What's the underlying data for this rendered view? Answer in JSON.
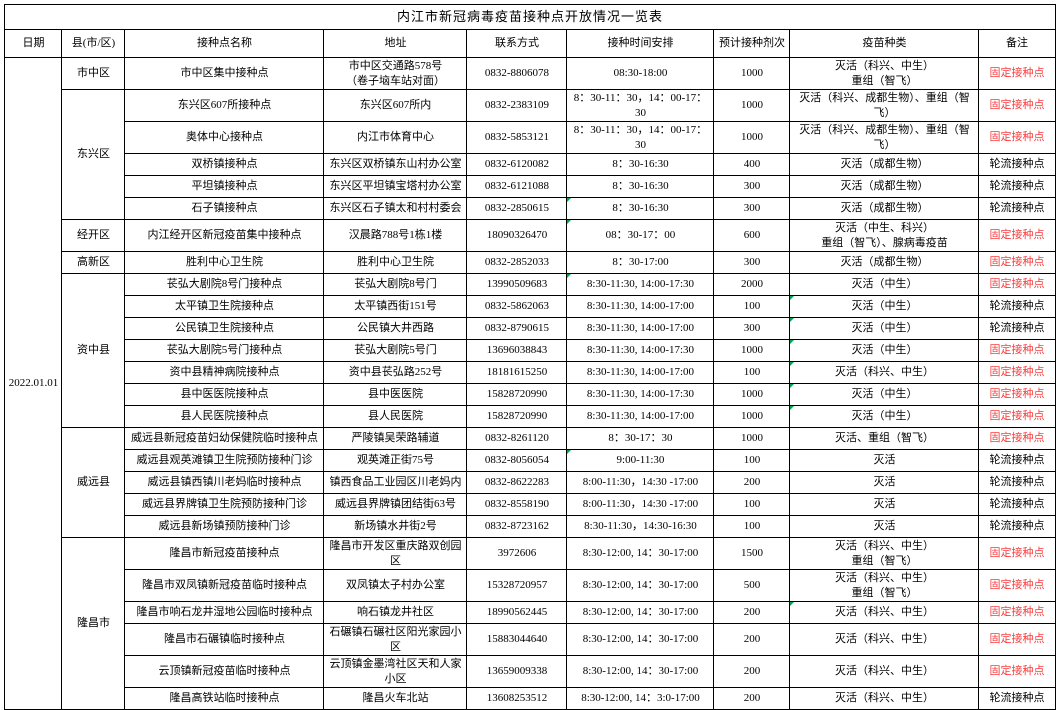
{
  "title": "内江市新冠病毒疫苗接种点开放情况一览表",
  "date": "2022.01.01",
  "columns": [
    "日期",
    "县(市/区)",
    "接种点名称",
    "地址",
    "联系方式",
    "接种时间安排",
    "预计接种剂次",
    "疫苗种类",
    "备注"
  ],
  "colors": {
    "fixed_remark_red": "#FA3C3C",
    "normal_text": "#000000",
    "border": "#000000",
    "cell_mark_green": "#00A650"
  },
  "districts": [
    {
      "name": "市中区",
      "rows": [
        {
          "site": "市中区集中接种点",
          "address": "市中区交通路578号\n（卷子垴车站对面）",
          "contact": "0832-8806078",
          "time": "08:30-18:00",
          "doses": "1000",
          "vaccine": "灭活（科兴、中生）\n重组（智飞）",
          "remark": "固定接种点",
          "fixed": true
        }
      ]
    },
    {
      "name": "东兴区",
      "rows": [
        {
          "site": "东兴区607所接种点",
          "address": "东兴区607所内",
          "contact": "0832-2383109",
          "time": "8：30-11：30，14：00-17：30",
          "doses": "1000",
          "vaccine": "灭活（科兴、成都生物）、重组（智飞）",
          "remark": "固定接种点",
          "fixed": true
        },
        {
          "site": "奥体中心接种点",
          "address": "内江市体育中心",
          "contact": "0832-5853121",
          "time": "8：30-11：30，14：00-17：30",
          "doses": "1000",
          "vaccine": "灭活（科兴、成都生物）、重组（智飞）",
          "remark": "固定接种点",
          "fixed": true
        },
        {
          "site": "双桥镇接种点",
          "address": "东兴区双桥镇东山村办公室",
          "contact": "0832-6120082",
          "time": "8：30-16:30",
          "doses": "400",
          "vaccine": "灭活（成都生物）",
          "remark": "轮流接种点",
          "fixed": false
        },
        {
          "site": "平坦镇接种点",
          "address": "东兴区平坦镇宝塔村办公室",
          "contact": "0832-6121088",
          "time": "8：30-16:30",
          "doses": "300",
          "vaccine": "灭活（成都生物）",
          "remark": "轮流接种点",
          "fixed": false
        },
        {
          "site": "石子镇接种点",
          "address": "东兴区石子镇太和村村委会",
          "contact": "0832-2850615",
          "time": "8：30-16:30",
          "doses": "300",
          "vaccine": "灭活（成都生物）",
          "remark": "轮流接种点",
          "fixed": false,
          "marks": [
            "time"
          ]
        }
      ]
    },
    {
      "name": "经开区",
      "rows": [
        {
          "site": "内江经开区新冠疫苗集中接种点",
          "address": "汉晨路788号1栋1楼",
          "contact": "18090326470",
          "time": "08：30-17：00",
          "doses": "600",
          "vaccine": "灭活（中生、科兴）\n重组（智飞）、腺病毒疫苗",
          "remark": "固定接种点",
          "fixed": true,
          "marks": [
            "time"
          ]
        }
      ]
    },
    {
      "name": "高新区",
      "rows": [
        {
          "site": "胜利中心卫生院",
          "address": "胜利中心卫生院",
          "contact": "0832-2852033",
          "time": "8：30-17:00",
          "doses": "300",
          "vaccine": "灭活（成都生物）",
          "remark": "固定接种点",
          "fixed": true
        }
      ]
    },
    {
      "name": "资中县",
      "rows": [
        {
          "site": "苌弘大剧院8号门接种点",
          "address": "苌弘大剧院8号门",
          "contact": "13990509683",
          "time": "8:30-11:30, 14:00-17:30",
          "doses": "2000",
          "vaccine": "灭活（中生）",
          "remark": "固定接种点",
          "fixed": true,
          "marks": [
            "time"
          ]
        },
        {
          "site": "太平镇卫生院接种点",
          "address": "太平镇西街151号",
          "contact": "0832-5862063",
          "time": "8:30-11:30, 14:00-17:00",
          "doses": "100",
          "vaccine": "灭活（中生）",
          "remark": "轮流接种点",
          "fixed": false,
          "marks": [
            "vaccine"
          ]
        },
        {
          "site": "公民镇卫生院接种点",
          "address": "公民镇大井西路",
          "contact": "0832-8790615",
          "time": "8:30-11:30, 14:00-17:00",
          "doses": "300",
          "vaccine": "灭活（中生）",
          "remark": "轮流接种点",
          "fixed": false,
          "marks": [
            "vaccine"
          ]
        },
        {
          "site": "苌弘大剧院5号门接种点",
          "address": "苌弘大剧院5号门",
          "contact": "13696038843",
          "time": "8:30-11:30, 14:00-17:30",
          "doses": "1000",
          "vaccine": "灭活（中生）",
          "remark": "固定接种点",
          "fixed": true,
          "marks": [
            "vaccine"
          ]
        },
        {
          "site": "资中县精神病院接种点",
          "address": "资中县苌弘路252号",
          "contact": "18181615250",
          "time": "8:30-11:30, 14:00-17:00",
          "doses": "100",
          "vaccine": "灭活（科兴、中生）",
          "remark": "固定接种点",
          "fixed": true,
          "marks": [
            "vaccine"
          ]
        },
        {
          "site": "县中医医院接种点",
          "address": "县中医医院",
          "contact": "15828720990",
          "time": "8:30-11:30, 14:00-17:30",
          "doses": "1000",
          "vaccine": "灭活（中生）",
          "remark": "固定接种点",
          "fixed": true,
          "marks": [
            "vaccine"
          ]
        },
        {
          "site": "县人民医院接种点",
          "address": "县人民医院",
          "contact": "15828720990",
          "time": "8:30-11:30, 14:00-17:00",
          "doses": "1000",
          "vaccine": "灭活（中生）",
          "remark": "固定接种点",
          "fixed": true,
          "marks": [
            "vaccine"
          ]
        }
      ]
    },
    {
      "name": "威远县",
      "rows": [
        {
          "site": "威远县新冠疫苗妇幼保健院临时接种点",
          "address": "严陵镇吴荣路辅道",
          "contact": "0832-8261120",
          "time": "8：30-17：30",
          "doses": "1000",
          "vaccine": "灭活、重组（智飞）",
          "remark": "固定接种点",
          "fixed": true
        },
        {
          "site": "威远县观英滩镇卫生院预防接种门诊",
          "address": "观英滩正街75号",
          "contact": "0832-8056054",
          "time": "9:00-11:30",
          "doses": "100",
          "vaccine": "灭活",
          "remark": "轮流接种点",
          "fixed": false,
          "marks": [
            "time"
          ]
        },
        {
          "site": "威远县镇西镇川老妈临时接种点",
          "address": "镇西食品工业园区川老妈内",
          "contact": "0832-8622283",
          "time": "8:00-11:30，14:30 -17:00",
          "doses": "200",
          "vaccine": "灭活",
          "remark": "轮流接种点",
          "fixed": false
        },
        {
          "site": "威远县界牌镇卫生院预防接种门诊",
          "address": "威远县界牌镇团结街63号",
          "contact": "0832-8558190",
          "time": "8:00-11:30，14:30 -17:00",
          "doses": "100",
          "vaccine": "灭活",
          "remark": "轮流接种点",
          "fixed": false
        },
        {
          "site": "威远县新场镇预防接种门诊",
          "address": "新场镇水井街2号",
          "contact": "0832-8723162",
          "time": "8:30-11:30，14:30-16:30",
          "doses": "100",
          "vaccine": "灭活",
          "remark": "轮流接种点",
          "fixed": false
        }
      ]
    },
    {
      "name": "隆昌市",
      "rows": [
        {
          "site": "隆昌市新冠疫苗接种点",
          "address": "隆昌市开发区重庆路双创园区",
          "contact": "3972606",
          "time": "8:30-12:00, 14：30-17:00",
          "doses": "1500",
          "vaccine": "灭活（科兴、中生）\n重组（智飞）",
          "remark": "固定接种点",
          "fixed": true
        },
        {
          "site": "隆昌市双凤镇新冠疫苗临时接种点",
          "address": "双凤镇太子村办公室",
          "contact": "15328720957",
          "time": "8:30-12:00, 14：30-17:00",
          "doses": "500",
          "vaccine": "灭活（科兴、中生）\n重组（智飞）",
          "remark": "固定接种点",
          "fixed": true
        },
        {
          "site": "隆昌市响石龙井湿地公园临时接种点",
          "address": "响石镇龙井社区",
          "contact": "18990562445",
          "time": "8:30-12:00, 14：30-17:00",
          "doses": "200",
          "vaccine": "灭活（科兴、中生）",
          "remark": "固定接种点",
          "fixed": true,
          "marks": [
            "vaccine"
          ]
        },
        {
          "site": "隆昌市石碾镇临时接种点",
          "address": "石碾镇石碾社区阳光家园小区",
          "contact": "15883044640",
          "time": "8:30-12:00, 14：30-17:00",
          "doses": "200",
          "vaccine": "灭活（科兴、中生）",
          "remark": "固定接种点",
          "fixed": true
        },
        {
          "site": "云顶镇新冠疫苗临时接种点",
          "address": "云顶镇金墨湾社区天和人家小区",
          "contact": "13659009338",
          "time": "8:30-12:00, 14：30-17:00",
          "doses": "200",
          "vaccine": "灭活（科兴、中生）",
          "remark": "固定接种点",
          "fixed": true
        },
        {
          "site": "隆昌高铁站临时接种点",
          "address": "隆昌火车北站",
          "contact": "13608253512",
          "time": "8:30-12:00, 14：3:0-17:00",
          "doses": "200",
          "vaccine": "灭活（科兴、中生）",
          "remark": "轮流接种点",
          "fixed": false
        }
      ]
    }
  ]
}
